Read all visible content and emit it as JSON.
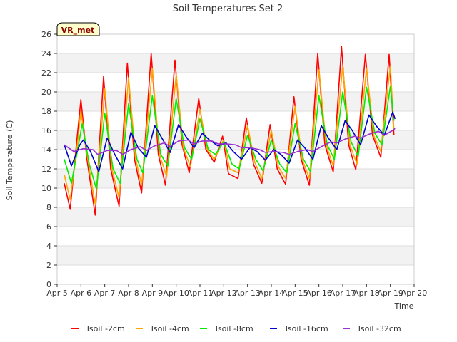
{
  "chart_data": {
    "type": "line",
    "title": "Soil Temperatures Set 2",
    "xlabel": "Time",
    "ylabel": "Soil Temperature (C)",
    "badge": "VR_met",
    "xlim": [
      5,
      20
    ],
    "ylim": [
      0,
      26
    ],
    "x_ticks": [
      {
        "v": 5,
        "label": "Apr 5"
      },
      {
        "v": 6,
        "label": "Apr 6"
      },
      {
        "v": 7,
        "label": "Apr 7"
      },
      {
        "v": 8,
        "label": "Apr 8"
      },
      {
        "v": 9,
        "label": "Apr 9"
      },
      {
        "v": 10,
        "label": "Apr 10"
      },
      {
        "v": 11,
        "label": "Apr 11"
      },
      {
        "v": 12,
        "label": "Apr 12"
      },
      {
        "v": 13,
        "label": "Apr 13"
      },
      {
        "v": 14,
        "label": "Apr 14"
      },
      {
        "v": 15,
        "label": "Apr 15"
      },
      {
        "v": 16,
        "label": "Apr 16"
      },
      {
        "v": 17,
        "label": "Apr 17"
      },
      {
        "v": 18,
        "label": "Apr 18"
      },
      {
        "v": 19,
        "label": "Apr 19"
      },
      {
        "v": 20,
        "label": "Apr 20"
      }
    ],
    "y_ticks": [
      0,
      2,
      4,
      6,
      8,
      10,
      12,
      14,
      16,
      18,
      20,
      22,
      24,
      26
    ],
    "grid": true,
    "band_color": "#f2f2f2",
    "legend_position": "bottom",
    "series": [
      {
        "name": "Tsoil -2cm",
        "color": "#ff0000",
        "x": [
          5.3,
          5.55,
          5.85,
          6.0,
          6.25,
          6.6,
          6.95,
          7.25,
          7.6,
          7.95,
          8.25,
          8.55,
          8.95,
          9.25,
          9.55,
          9.95,
          10.25,
          10.55,
          10.95,
          11.25,
          11.6,
          11.95,
          12.2,
          12.6,
          12.95,
          13.25,
          13.6,
          13.95,
          14.25,
          14.6,
          14.95,
          15.25,
          15.6,
          15.95,
          16.25,
          16.6,
          16.95,
          17.25,
          17.55,
          17.95,
          18.25,
          18.6,
          18.95,
          19.15
        ],
        "y": [
          10.5,
          7.8,
          15.5,
          19.2,
          13.0,
          7.2,
          21.6,
          12.0,
          8.1,
          23.0,
          13.0,
          9.5,
          24.0,
          13.5,
          10.3,
          23.3,
          14.5,
          11.6,
          19.3,
          14.0,
          12.7,
          15.4,
          11.5,
          11.0,
          17.3,
          12.5,
          10.5,
          16.6,
          12.0,
          10.4,
          19.5,
          13.0,
          10.3,
          24.0,
          14.5,
          11.7,
          24.7,
          14.5,
          11.9,
          23.9,
          15.5,
          13.2,
          23.9,
          15.5
        ]
      },
      {
        "name": "Tsoil -4cm",
        "color": "#ffa500",
        "x": [
          5.3,
          5.55,
          5.85,
          6.0,
          6.3,
          6.6,
          7.0,
          7.3,
          7.6,
          8.0,
          8.3,
          8.55,
          9.0,
          9.3,
          9.6,
          10.0,
          10.3,
          10.6,
          11.0,
          11.3,
          11.6,
          12.0,
          12.25,
          12.6,
          13.0,
          13.3,
          13.6,
          14.0,
          14.3,
          14.6,
          15.0,
          15.3,
          15.6,
          16.0,
          16.3,
          16.6,
          17.0,
          17.3,
          17.6,
          18.0,
          18.3,
          18.6,
          19.0,
          19.15
        ],
        "y": [
          11.4,
          8.8,
          14.5,
          18.0,
          12.8,
          8.3,
          20.3,
          12.0,
          9.0,
          21.5,
          13.0,
          10.3,
          22.4,
          13.5,
          11.2,
          21.8,
          14.2,
          12.2,
          18.2,
          14.0,
          13.0,
          15.0,
          12.0,
          11.6,
          16.5,
          12.7,
          11.0,
          16.0,
          12.2,
          11.0,
          18.5,
          13.0,
          11.0,
          22.3,
          14.5,
          12.3,
          22.7,
          14.5,
          12.5,
          22.5,
          15.5,
          13.8,
          22.7,
          16.0
        ]
      },
      {
        "name": "Tsoil -8cm",
        "color": "#00ee00",
        "x": [
          5.3,
          5.6,
          5.9,
          6.05,
          6.35,
          6.65,
          7.0,
          7.35,
          7.65,
          8.0,
          8.35,
          8.6,
          9.0,
          9.35,
          9.65,
          10.0,
          10.35,
          10.65,
          11.0,
          11.35,
          11.65,
          12.0,
          12.35,
          12.65,
          13.0,
          13.35,
          13.65,
          14.0,
          14.35,
          14.65,
          15.0,
          15.35,
          15.65,
          16.0,
          16.35,
          16.65,
          17.0,
          17.35,
          17.65,
          18.0,
          18.35,
          18.65,
          19.0,
          19.15
        ],
        "y": [
          13.0,
          10.5,
          14.5,
          16.7,
          12.5,
          9.9,
          17.8,
          12.0,
          10.5,
          18.8,
          13.0,
          11.6,
          19.6,
          13.5,
          12.3,
          19.3,
          14.2,
          13.0,
          17.2,
          14.0,
          13.5,
          14.8,
          12.5,
          12.0,
          15.5,
          13.0,
          11.8,
          15.0,
          12.5,
          11.6,
          16.7,
          13.0,
          11.7,
          19.6,
          14.5,
          13.0,
          20.0,
          14.8,
          13.3,
          20.5,
          15.7,
          14.5,
          20.6,
          17.0
        ]
      },
      {
        "name": "Tsoil -16cm",
        "color": "#0000cc",
        "x": [
          5.3,
          5.6,
          5.95,
          6.1,
          6.4,
          6.75,
          7.1,
          7.4,
          7.75,
          8.1,
          8.4,
          8.75,
          9.1,
          9.4,
          9.75,
          10.1,
          10.4,
          10.75,
          11.1,
          11.4,
          11.75,
          12.1,
          12.4,
          12.75,
          13.1,
          13.4,
          13.75,
          14.1,
          14.4,
          14.75,
          15.1,
          15.4,
          15.75,
          16.1,
          16.4,
          16.75,
          17.1,
          17.4,
          17.75,
          18.1,
          18.4,
          18.75,
          19.1,
          19.2
        ],
        "y": [
          14.5,
          12.3,
          14.5,
          15.0,
          13.8,
          11.7,
          15.2,
          13.6,
          12.0,
          15.8,
          14.2,
          13.2,
          16.5,
          15.2,
          13.7,
          16.6,
          15.4,
          14.2,
          15.7,
          15.0,
          14.4,
          14.7,
          13.8,
          13.0,
          14.2,
          13.8,
          12.9,
          14.0,
          13.5,
          12.6,
          15.0,
          14.2,
          13.0,
          16.5,
          15.2,
          14.0,
          17.0,
          16.0,
          14.5,
          17.6,
          16.5,
          15.5,
          17.9,
          17.2
        ]
      },
      {
        "name": "Tsoil -32cm",
        "color": "#9932cc",
        "x": [
          5.3,
          5.7,
          6.1,
          6.5,
          6.7,
          7.1,
          7.5,
          7.75,
          8.1,
          8.5,
          8.75,
          9.1,
          9.5,
          9.75,
          10.1,
          10.5,
          10.75,
          11.1,
          11.5,
          11.75,
          12.1,
          12.5,
          12.75,
          13.1,
          13.5,
          13.75,
          14.1,
          14.5,
          14.75,
          15.1,
          15.5,
          15.75,
          16.1,
          16.5,
          16.75,
          17.1,
          17.5,
          17.75,
          18.1,
          18.5,
          18.75,
          19.1,
          19.2
        ],
        "y": [
          14.5,
          13.8,
          14.1,
          14.0,
          13.5,
          13.9,
          13.9,
          13.5,
          14.0,
          14.3,
          13.9,
          14.4,
          14.7,
          14.3,
          14.9,
          15.0,
          14.6,
          14.9,
          14.9,
          14.6,
          14.6,
          14.5,
          14.2,
          14.2,
          14.0,
          13.7,
          13.8,
          13.7,
          13.5,
          13.8,
          14.0,
          13.8,
          14.3,
          14.8,
          14.7,
          15.1,
          15.4,
          15.2,
          15.6,
          15.9,
          15.5,
          16.0,
          16.2
        ]
      }
    ]
  }
}
